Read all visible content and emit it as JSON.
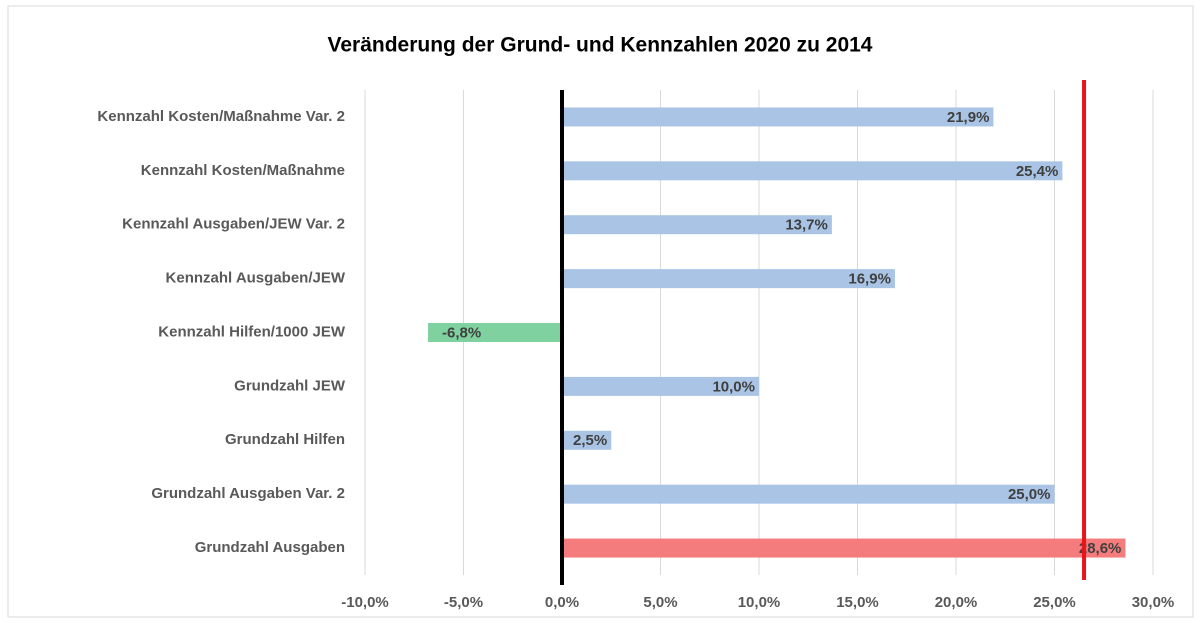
{
  "chart_data": {
    "type": "bar",
    "orientation": "horizontal",
    "title": "Veränderung der Grund- und Kennzahlen 2020 zu 2014",
    "categories": [
      "Kennzahl Kosten/Maßnahme Var. 2",
      "Kennzahl Kosten/Maßnahme",
      "Kennzahl Ausgaben/JEW Var. 2",
      "Kennzahl Ausgaben/JEW",
      "Kennzahl Hilfen/1000 JEW",
      "Grundzahl JEW",
      "Grundzahl Hilfen",
      "Grundzahl Ausgaben Var. 2",
      "Grundzahl Ausgaben"
    ],
    "values": [
      21.9,
      25.4,
      13.7,
      16.9,
      -6.8,
      10.0,
      2.5,
      25.0,
      28.6
    ],
    "value_labels": [
      "21,9%",
      "25,4%",
      "13,7%",
      "16,9%",
      "-6,8%",
      "10,0%",
      "2,5%",
      "25,0%",
      "28,6%"
    ],
    "colors": [
      "#a9c4e4",
      "#a9c4e4",
      "#a9c4e4",
      "#a9c4e4",
      "#7fd1a0",
      "#a9c4e4",
      "#a9c4e4",
      "#a9c4e4",
      "#f47c7c"
    ],
    "xlim": [
      -10,
      30
    ],
    "xticks": [
      {
        "value": -10,
        "label": "-10,0%"
      },
      {
        "value": -5,
        "label": "-5,0%"
      },
      {
        "value": 0,
        "label": "0,0%"
      },
      {
        "value": 5,
        "label": "5,0%"
      },
      {
        "value": 10,
        "label": "10,0%"
      },
      {
        "value": 15,
        "label": "15,0%"
      },
      {
        "value": 20,
        "label": "20,0%"
      },
      {
        "value": 25,
        "label": "25,0%"
      },
      {
        "value": 30,
        "label": "30,0%"
      }
    ],
    "grid": true,
    "reference_line": {
      "value": 26.5,
      "color": "#e8141a"
    },
    "zero_line_color": "#000000"
  }
}
